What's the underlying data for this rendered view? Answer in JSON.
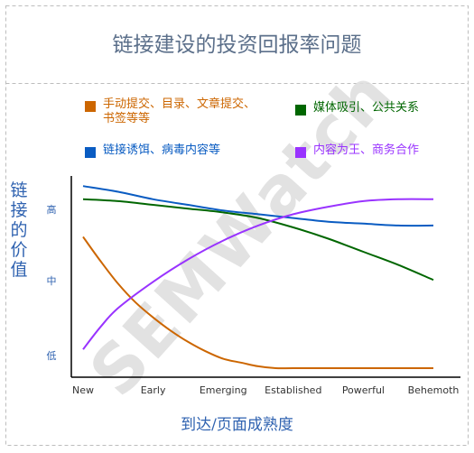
{
  "title": "链接建设的投资回报率问题",
  "watermark": "SEMWatch",
  "legend": [
    {
      "label": "手动提交、目录、文章提交、书签等等",
      "color": "#cc6600"
    },
    {
      "label": "媒体吸引、公共关系",
      "color": "#006600"
    },
    {
      "label": "链接诱饵、病毒内容等",
      "color": "#0a5cc2"
    },
    {
      "label": "内容为王、商务合作",
      "color": "#9933ff"
    }
  ],
  "chart_data": {
    "type": "line",
    "title": "链接建设的投资回报率问题",
    "xlabel": "到达/页面成熟度",
    "ylabel": "链接的价值",
    "categories": [
      "New",
      "Early",
      "Emerging",
      "Established",
      "Powerful",
      "Behemoth"
    ],
    "y_tick_labels": [
      "低",
      "中",
      "高"
    ],
    "ylim": [
      0,
      100
    ],
    "grid": false,
    "legend_position": "top",
    "series": [
      {
        "name": "手动提交、目录、文章提交、书签等等",
        "color": "#cc6600",
        "x": [
          0,
          0.25,
          0.5,
          0.75,
          1,
          1.25,
          1.5,
          1.75,
          2,
          2.25,
          2.5,
          2.75,
          3,
          3.5,
          4,
          4.5,
          5
        ],
        "y": [
          70,
          57,
          45,
          35,
          27,
          20,
          14,
          9,
          5,
          3,
          1,
          0,
          0,
          0,
          0,
          0,
          0
        ]
      },
      {
        "name": "媒体吸引、公共关系",
        "color": "#006600",
        "x": [
          0,
          0.5,
          1,
          1.5,
          2,
          2.5,
          3,
          3.5,
          4,
          4.5,
          5
        ],
        "y": [
          90,
          89,
          87,
          85,
          83,
          80,
          75,
          69,
          62,
          55,
          47
        ]
      },
      {
        "name": "链接诱饵、病毒内容等",
        "color": "#0a5cc2",
        "x": [
          0,
          0.5,
          1,
          1.5,
          2,
          2.5,
          3,
          3.5,
          4,
          4.5,
          5
        ],
        "y": [
          97,
          94,
          90,
          87,
          84,
          82,
          80,
          78,
          77,
          76,
          76
        ]
      },
      {
        "name": "内容为王、商务合作",
        "color": "#9933ff",
        "x": [
          0,
          0.25,
          0.5,
          1,
          1.5,
          2,
          2.5,
          3,
          3.5,
          4,
          4.5,
          5
        ],
        "y": [
          10,
          22,
          32,
          46,
          58,
          68,
          76,
          82,
          86,
          89,
          90,
          90
        ]
      }
    ]
  }
}
